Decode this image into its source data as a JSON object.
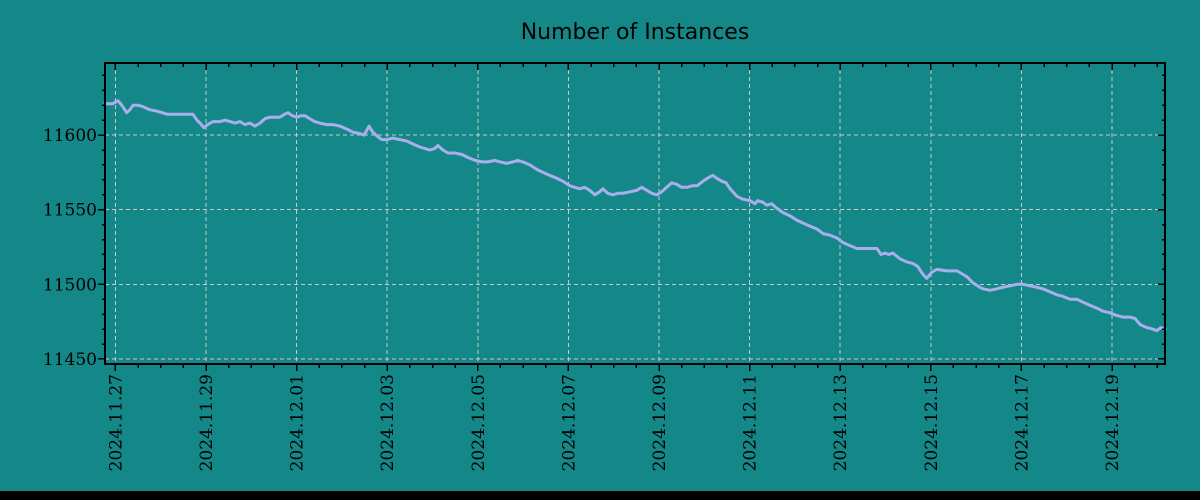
{
  "page": {
    "background_color": "#148888",
    "bottom_bar_color": "#010101",
    "frame_color": "#000000",
    "text_color": "#000000"
  },
  "chart_data": {
    "type": "line",
    "title": "Number of Instances",
    "legend": {
      "show": false
    },
    "grid": {
      "show": true,
      "style": "dashed",
      "color": "#c9c9c9"
    },
    "x_axis": {
      "label": "",
      "tick_labels": [
        "2024.11.27",
        "2024.11.29",
        "2024.12.01",
        "2024.12.03",
        "2024.12.05",
        "2024.12.07",
        "2024.12.09",
        "2024.12.11",
        "2024.12.13",
        "2024.12.15",
        "2024.12.17",
        "2024.12.19"
      ],
      "tick_positions_days": [
        0,
        2,
        4,
        6,
        8,
        10,
        12,
        14,
        16,
        18,
        20,
        22
      ],
      "minor_tick_step_days": 0.5,
      "xlim_days": [
        -0.23,
        23.17
      ]
    },
    "y_axis": {
      "label": "",
      "tick_values": [
        11450,
        11500,
        11550,
        11600
      ],
      "minor_tick_step": 10,
      "ylim": [
        11446.6,
        11648.3
      ]
    },
    "series": [
      {
        "name": "instances",
        "color": "#aaaeed",
        "line_width": 3,
        "points": [
          [
            -0.23,
            11621
          ],
          [
            -0.12,
            11621
          ],
          [
            -0.06,
            11621
          ],
          [
            0.06,
            11623
          ],
          [
            0.14,
            11620
          ],
          [
            0.25,
            11615
          ],
          [
            0.32,
            11617
          ],
          [
            0.39,
            11620
          ],
          [
            0.5,
            11620
          ],
          [
            0.61,
            11619
          ],
          [
            0.76,
            11617
          ],
          [
            0.92,
            11616
          ],
          [
            1.03,
            11615
          ],
          [
            1.14,
            11614
          ],
          [
            1.27,
            11614
          ],
          [
            1.42,
            11614
          ],
          [
            1.58,
            11614
          ],
          [
            1.71,
            11614
          ],
          [
            1.8,
            11610
          ],
          [
            1.87,
            11608
          ],
          [
            1.95,
            11605
          ],
          [
            2.04,
            11607
          ],
          [
            2.15,
            11609
          ],
          [
            2.31,
            11609
          ],
          [
            2.42,
            11610
          ],
          [
            2.53,
            11609
          ],
          [
            2.64,
            11608
          ],
          [
            2.75,
            11609
          ],
          [
            2.86,
            11607
          ],
          [
            2.97,
            11608
          ],
          [
            3.08,
            11606
          ],
          [
            3.19,
            11608
          ],
          [
            3.3,
            11611
          ],
          [
            3.41,
            11612
          ],
          [
            3.52,
            11612
          ],
          [
            3.63,
            11612
          ],
          [
            3.74,
            11614
          ],
          [
            3.81,
            11615
          ],
          [
            3.9,
            11613
          ],
          [
            4.01,
            11612
          ],
          [
            4.09,
            11613
          ],
          [
            4.18,
            11613
          ],
          [
            4.29,
            11611
          ],
          [
            4.4,
            11609
          ],
          [
            4.51,
            11608
          ],
          [
            4.67,
            11607
          ],
          [
            4.8,
            11607
          ],
          [
            4.96,
            11606
          ],
          [
            5.11,
            11604
          ],
          [
            5.24,
            11602
          ],
          [
            5.4,
            11601
          ],
          [
            5.49,
            11600
          ],
          [
            5.6,
            11606
          ],
          [
            5.68,
            11602
          ],
          [
            5.79,
            11599
          ],
          [
            5.88,
            11597
          ],
          [
            5.99,
            11597
          ],
          [
            6.13,
            11598
          ],
          [
            6.28,
            11597
          ],
          [
            6.43,
            11596
          ],
          [
            6.57,
            11594
          ],
          [
            6.72,
            11592
          ],
          [
            6.83,
            11591
          ],
          [
            6.94,
            11590
          ],
          [
            7.05,
            11591
          ],
          [
            7.12,
            11593
          ],
          [
            7.23,
            11590
          ],
          [
            7.34,
            11588
          ],
          [
            7.49,
            11588
          ],
          [
            7.65,
            11587
          ],
          [
            7.78,
            11585
          ],
          [
            7.94,
            11583
          ],
          [
            8.09,
            11582
          ],
          [
            8.22,
            11582
          ],
          [
            8.38,
            11583
          ],
          [
            8.49,
            11582
          ],
          [
            8.64,
            11581
          ],
          [
            8.77,
            11582
          ],
          [
            8.88,
            11583
          ],
          [
            8.99,
            11582
          ],
          [
            9.15,
            11580
          ],
          [
            9.3,
            11577
          ],
          [
            9.44,
            11575
          ],
          [
            9.59,
            11573
          ],
          [
            9.75,
            11571
          ],
          [
            9.88,
            11569
          ],
          [
            10.03,
            11566
          ],
          [
            10.14,
            11565
          ],
          [
            10.25,
            11564
          ],
          [
            10.36,
            11565
          ],
          [
            10.47,
            11563
          ],
          [
            10.58,
            11560
          ],
          [
            10.69,
            11562
          ],
          [
            10.76,
            11564
          ],
          [
            10.87,
            11561
          ],
          [
            10.98,
            11560
          ],
          [
            11.09,
            11561
          ],
          [
            11.2,
            11561
          ],
          [
            11.36,
            11562
          ],
          [
            11.51,
            11563
          ],
          [
            11.62,
            11565
          ],
          [
            11.73,
            11563
          ],
          [
            11.84,
            11561
          ],
          [
            11.95,
            11560
          ],
          [
            12.06,
            11562
          ],
          [
            12.17,
            11565
          ],
          [
            12.28,
            11568
          ],
          [
            12.39,
            11567
          ],
          [
            12.5,
            11565
          ],
          [
            12.62,
            11565
          ],
          [
            12.73,
            11566
          ],
          [
            12.84,
            11566
          ],
          [
            12.97,
            11569
          ],
          [
            13.12,
            11572
          ],
          [
            13.19,
            11573
          ],
          [
            13.28,
            11571
          ],
          [
            13.39,
            11569
          ],
          [
            13.48,
            11568
          ],
          [
            13.57,
            11564
          ],
          [
            13.72,
            11559
          ],
          [
            13.85,
            11557
          ],
          [
            14.01,
            11556
          ],
          [
            14.12,
            11554
          ],
          [
            14.18,
            11556
          ],
          [
            14.29,
            11555
          ],
          [
            14.38,
            11553
          ],
          [
            14.49,
            11554
          ],
          [
            14.6,
            11551
          ],
          [
            14.74,
            11548
          ],
          [
            14.89,
            11546
          ],
          [
            15.04,
            11543
          ],
          [
            15.18,
            11541
          ],
          [
            15.33,
            11539
          ],
          [
            15.49,
            11537
          ],
          [
            15.62,
            11534
          ],
          [
            15.77,
            11533
          ],
          [
            15.93,
            11531
          ],
          [
            16.06,
            11528
          ],
          [
            16.21,
            11526
          ],
          [
            16.37,
            11524
          ],
          [
            16.5,
            11524
          ],
          [
            16.66,
            11524
          ],
          [
            16.81,
            11524
          ],
          [
            16.9,
            11520
          ],
          [
            16.99,
            11521
          ],
          [
            17.07,
            11520
          ],
          [
            17.16,
            11521
          ],
          [
            17.32,
            11517
          ],
          [
            17.47,
            11515
          ],
          [
            17.6,
            11514
          ],
          [
            17.71,
            11512
          ],
          [
            17.82,
            11507
          ],
          [
            17.91,
            11504
          ],
          [
            18.02,
            11508
          ],
          [
            18.13,
            11510
          ],
          [
            18.35,
            11509
          ],
          [
            18.58,
            11509
          ],
          [
            18.69,
            11507
          ],
          [
            18.8,
            11505
          ],
          [
            18.93,
            11501
          ],
          [
            19.08,
            11498
          ],
          [
            19.15,
            11497
          ],
          [
            19.31,
            11496
          ],
          [
            19.46,
            11497
          ],
          [
            19.59,
            11498
          ],
          [
            19.75,
            11499
          ],
          [
            19.9,
            11500
          ],
          [
            20.03,
            11500
          ],
          [
            20.19,
            11499
          ],
          [
            20.34,
            11498
          ],
          [
            20.47,
            11497
          ],
          [
            20.63,
            11495
          ],
          [
            20.78,
            11493
          ],
          [
            20.91,
            11492
          ],
          [
            21.07,
            11490
          ],
          [
            21.22,
            11490
          ],
          [
            21.36,
            11488
          ],
          [
            21.51,
            11486
          ],
          [
            21.67,
            11484
          ],
          [
            21.8,
            11482
          ],
          [
            21.95,
            11481
          ],
          [
            22.11,
            11479
          ],
          [
            22.24,
            11478
          ],
          [
            22.4,
            11478
          ],
          [
            22.51,
            11477
          ],
          [
            22.62,
            11473
          ],
          [
            22.77,
            11471
          ],
          [
            22.9,
            11470
          ],
          [
            22.99,
            11469
          ],
          [
            23.08,
            11471
          ],
          [
            23.17,
            11470
          ]
        ]
      }
    ]
  }
}
